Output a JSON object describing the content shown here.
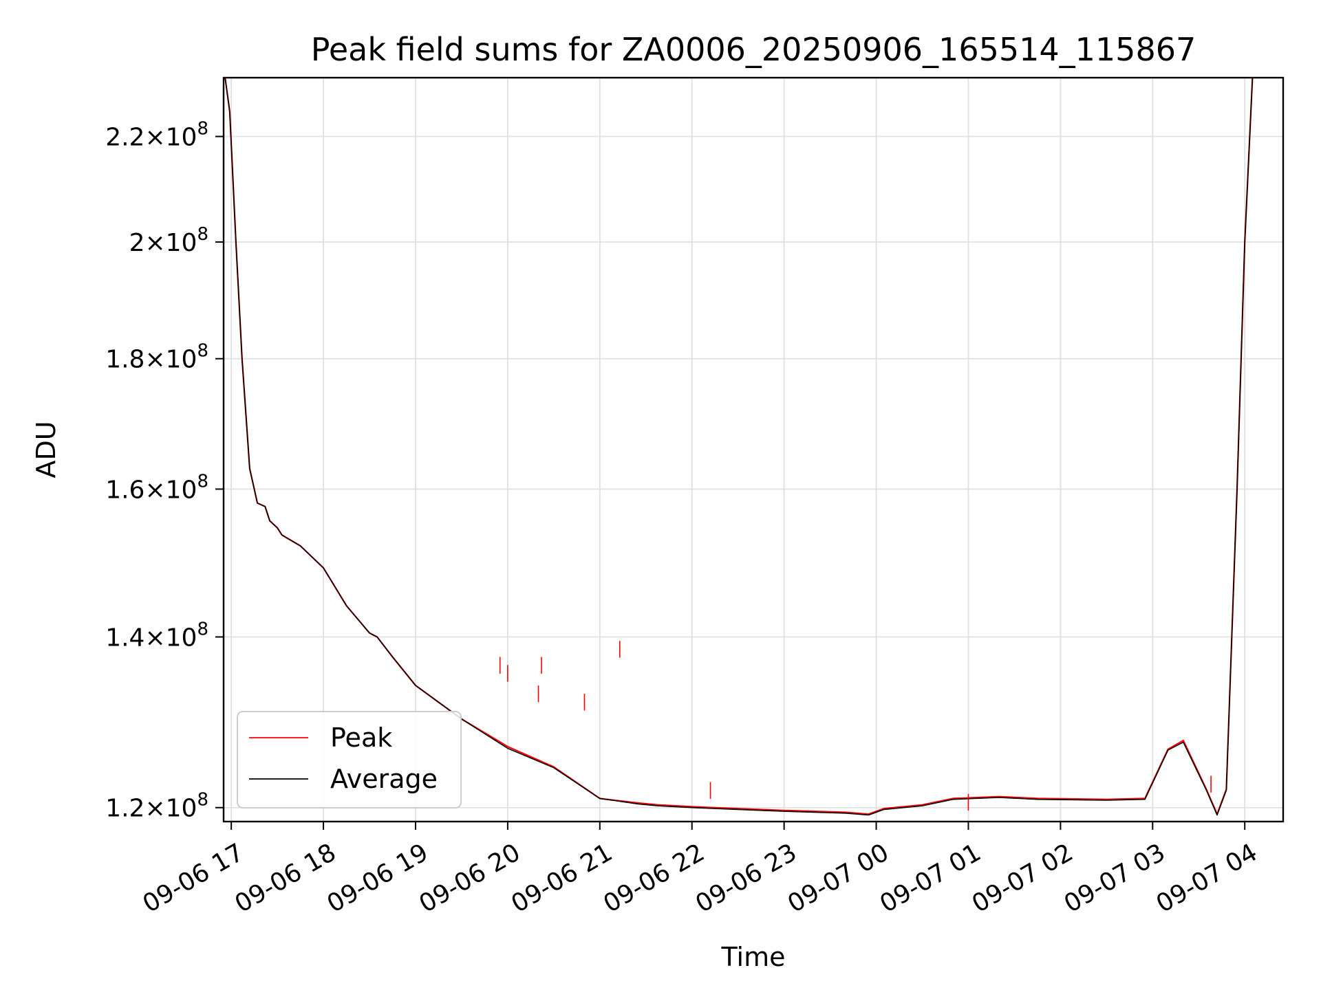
{
  "chart_data": {
    "type": "line",
    "title": "Peak field sums for ZA0006_20250906_165514_115867",
    "xlabel": "Time",
    "ylabel": "ADU",
    "y_scale": "log",
    "xlim": [
      "2025-09-06 16:55",
      "2025-09-07 04:25"
    ],
    "ylim": [
      118500000,
      232000000
    ],
    "x_ticks": [
      "09-06 17",
      "09-06 18",
      "09-06 19",
      "09-06 20",
      "09-06 21",
      "09-06 22",
      "09-06 23",
      "09-07 00",
      "09-07 01",
      "09-07 02",
      "09-07 03",
      "09-07 04"
    ],
    "x_tick_times": [
      "2025-09-06 17:00",
      "2025-09-06 18:00",
      "2025-09-06 19:00",
      "2025-09-06 20:00",
      "2025-09-06 21:00",
      "2025-09-06 22:00",
      "2025-09-06 23:00",
      "2025-09-07 00:00",
      "2025-09-07 01:00",
      "2025-09-07 02:00",
      "2025-09-07 03:00",
      "2025-09-07 04:00"
    ],
    "y_ticks": [
      {
        "value": 120000000,
        "mantissa": "1.2",
        "exp": "8"
      },
      {
        "value": 140000000,
        "mantissa": "1.4",
        "exp": "8"
      },
      {
        "value": 160000000,
        "mantissa": "1.6",
        "exp": "8"
      },
      {
        "value": 180000000,
        "mantissa": "1.8",
        "exp": "8"
      },
      {
        "value": 200000000,
        "mantissa": "2",
        "exp": "8"
      },
      {
        "value": 220000000,
        "mantissa": "2.2",
        "exp": "8"
      }
    ],
    "grid": true,
    "legend_position": "lower-left",
    "series": [
      {
        "name": "Peak",
        "color": "#ff0000",
        "x": [
          "2025-09-06 16:56",
          "2025-09-06 16:59",
          "2025-09-06 17:03",
          "2025-09-06 17:07",
          "2025-09-06 17:12",
          "2025-09-06 17:17",
          "2025-09-06 17:22",
          "2025-09-06 17:25",
          "2025-09-06 17:30",
          "2025-09-06 17:33",
          "2025-09-06 17:37",
          "2025-09-06 17:45",
          "2025-09-06 18:00",
          "2025-09-06 18:15",
          "2025-09-06 18:30",
          "2025-09-06 18:35",
          "2025-09-06 18:45",
          "2025-09-06 19:00",
          "2025-09-06 19:30",
          "2025-09-06 20:00",
          "2025-09-06 20:30",
          "2025-09-06 21:00",
          "2025-09-06 21:25",
          "2025-09-06 21:38",
          "2025-09-06 22:00",
          "2025-09-06 22:30",
          "2025-09-06 23:00",
          "2025-09-06 23:40",
          "2025-09-06 23:55",
          "2025-09-07 00:05",
          "2025-09-07 00:30",
          "2025-09-07 00:50",
          "2025-09-07 01:20",
          "2025-09-07 01:45",
          "2025-09-07 02:30",
          "2025-09-07 02:55",
          "2025-09-07 03:10",
          "2025-09-07 03:20",
          "2025-09-07 03:35",
          "2025-09-07 03:42",
          "2025-09-07 03:48",
          "2025-09-07 03:55",
          "2025-09-07 04:00",
          "2025-09-07 04:05"
        ],
        "y": [
          232000000,
          225000000,
          200000000,
          180000000,
          163000000,
          158000000,
          157500000,
          155500000,
          154500000,
          153500000,
          153000000,
          152000000,
          149000000,
          144000000,
          140500000,
          140000000,
          137500000,
          134000000,
          130000000,
          126800000,
          124500000,
          121000000,
          120500000,
          120300000,
          120100000,
          119900000,
          119700000,
          119500000,
          119300000,
          119900000,
          120300000,
          121000000,
          121200000,
          121000000,
          120900000,
          121000000,
          126500000,
          127500000,
          122000000,
          119300000,
          122000000,
          160000000,
          200000000,
          232000000
        ]
      },
      {
        "name": "Average",
        "color": "#000000",
        "x": [
          "2025-09-06 16:56",
          "2025-09-06 16:59",
          "2025-09-06 17:03",
          "2025-09-06 17:07",
          "2025-09-06 17:12",
          "2025-09-06 17:17",
          "2025-09-06 17:22",
          "2025-09-06 17:25",
          "2025-09-06 17:30",
          "2025-09-06 17:33",
          "2025-09-06 17:37",
          "2025-09-06 17:45",
          "2025-09-06 18:00",
          "2025-09-06 18:15",
          "2025-09-06 18:30",
          "2025-09-06 18:35",
          "2025-09-06 18:45",
          "2025-09-06 19:00",
          "2025-09-06 19:30",
          "2025-09-06 20:00",
          "2025-09-06 20:30",
          "2025-09-06 21:00",
          "2025-09-06 21:25",
          "2025-09-06 21:38",
          "2025-09-06 22:00",
          "2025-09-06 22:30",
          "2025-09-06 23:00",
          "2025-09-06 23:40",
          "2025-09-06 23:55",
          "2025-09-07 00:05",
          "2025-09-07 00:30",
          "2025-09-07 00:50",
          "2025-09-07 01:20",
          "2025-09-07 01:45",
          "2025-09-07 02:30",
          "2025-09-07 02:55",
          "2025-09-07 03:10",
          "2025-09-07 03:20",
          "2025-09-07 03:35",
          "2025-09-07 03:42",
          "2025-09-07 03:48",
          "2025-09-07 03:55",
          "2025-09-07 04:00",
          "2025-09-07 04:05"
        ],
        "y": [
          232000000,
          225000000,
          200000000,
          180000000,
          163000000,
          158000000,
          157500000,
          155500000,
          154500000,
          153500000,
          153000000,
          152000000,
          149000000,
          144000000,
          140500000,
          140000000,
          137500000,
          134000000,
          130000000,
          126600000,
          124400000,
          121000000,
          120400000,
          120200000,
          120000000,
          119800000,
          119600000,
          119400000,
          119200000,
          119800000,
          120200000,
          120900000,
          121100000,
          120900000,
          120800000,
          120900000,
          126400000,
          127300000,
          121900000,
          119200000,
          121900000,
          160000000,
          200000000,
          232000000
        ]
      }
    ],
    "spikes": [
      {
        "x": "2025-09-06 19:55",
        "y": 137500000
      },
      {
        "x": "2025-09-06 20:00",
        "y": 136500000
      },
      {
        "x": "2025-09-06 20:20",
        "y": 134000000
      },
      {
        "x": "2025-09-06 20:22",
        "y": 137500000
      },
      {
        "x": "2025-09-06 20:50",
        "y": 133000000
      },
      {
        "x": "2025-09-06 21:13",
        "y": 139500000
      },
      {
        "x": "2025-09-06 22:12",
        "y": 122800000
      },
      {
        "x": "2025-09-07 01:00",
        "y": 121500000
      },
      {
        "x": "2025-09-07 03:38",
        "y": 123500000
      }
    ]
  }
}
